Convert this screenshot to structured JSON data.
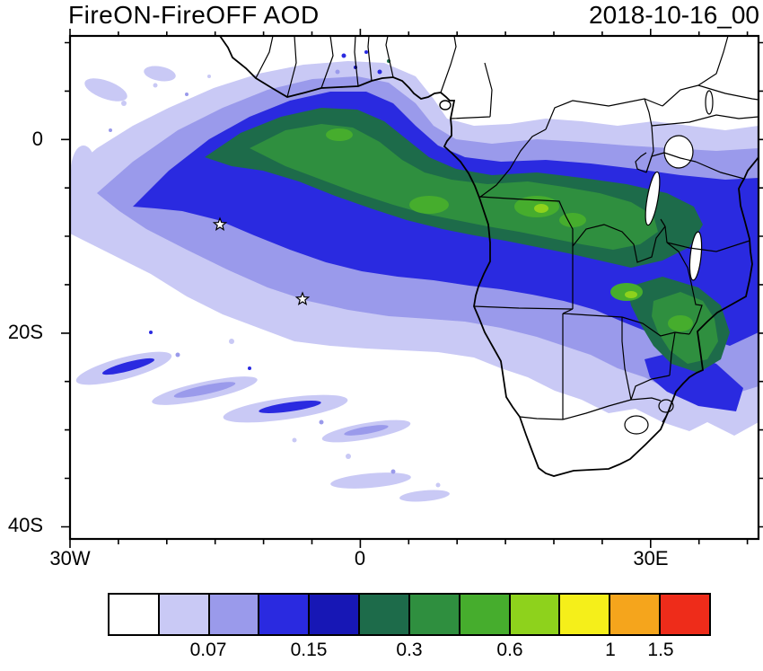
{
  "title": "FireON-FireOFF AOD",
  "datetime": "2018-10-16_00",
  "axes": {
    "y": [
      "0",
      "20S",
      "40S"
    ],
    "x": [
      "30W",
      "0",
      "30E"
    ]
  },
  "colorbar": {
    "cells": 12,
    "colors": [
      "#ffffff",
      "#c9c9f5",
      "#9a9aeb",
      "#2a2ae0",
      "#1717b5",
      "#1d6b4a",
      "#2f8f3f",
      "#46ad2d",
      "#8ed21c",
      "#f5ef1a",
      "#f5a51c",
      "#ee2c1a"
    ],
    "ticks": [
      {
        "label": "0.07",
        "boundary": 2
      },
      {
        "label": "0.15",
        "boundary": 4
      },
      {
        "label": "0.3",
        "boundary": 6
      },
      {
        "label": "0.6",
        "boundary": 8
      },
      {
        "label": "1",
        "boundary": 10
      },
      {
        "label": "1.5",
        "boundary": 11
      }
    ]
  },
  "chart_data": {
    "type": "heatmap",
    "title": "FireON-FireOFF AOD",
    "datetime": "2018-10-16_00",
    "variable": "Aerosol optical depth difference (FireON minus FireOFF)",
    "projection": "lat-lon map over south Atlantic and southern Africa",
    "lon_range": [
      -30,
      41
    ],
    "lat_range": [
      -41,
      11
    ],
    "x_tick_labels": [
      "30W",
      "0",
      "30E"
    ],
    "y_tick_labels": [
      "0",
      "20S",
      "40S"
    ],
    "colorbar_tick_values": [
      0.07,
      0.15,
      0.3,
      0.6,
      1,
      1.5
    ],
    "palette": [
      "#ffffff",
      "#c9c9f5",
      "#9a9aeb",
      "#2a2ae0",
      "#1717b5",
      "#1d6b4a",
      "#2f8f3f",
      "#46ad2d",
      "#8ed21c",
      "#f5ef1a",
      "#f5a51c",
      "#ee2c1a"
    ],
    "markers": [
      {
        "type": "star",
        "lon": -14.5,
        "lat": -8.8
      },
      {
        "type": "star",
        "lon": -6.0,
        "lat": -16.5
      }
    ],
    "features": [
      "Broad weak enhancement (lavender/periwinkle, ~0.03-0.15) covering the SE Atlantic from ~30W to the African coast between ~5N and ~22S",
      "Core plume (blue to dark green, ~0.15-0.6) in a diagonal band from the Gulf of Guinea across the ocean into Congo/Angola/Zambia",
      "Brightest green patches (>0.6) over Zambia, Zimbabwe and Mozambique",
      "Plume tail of blue/green extends down the Mozambique Channel to ~30S",
      "Scattered faint streaks of lavender/blue in the south-western ocean quadrant",
      "No enhancement (white) over northern/eastern Africa and interior South Africa"
    ]
  }
}
